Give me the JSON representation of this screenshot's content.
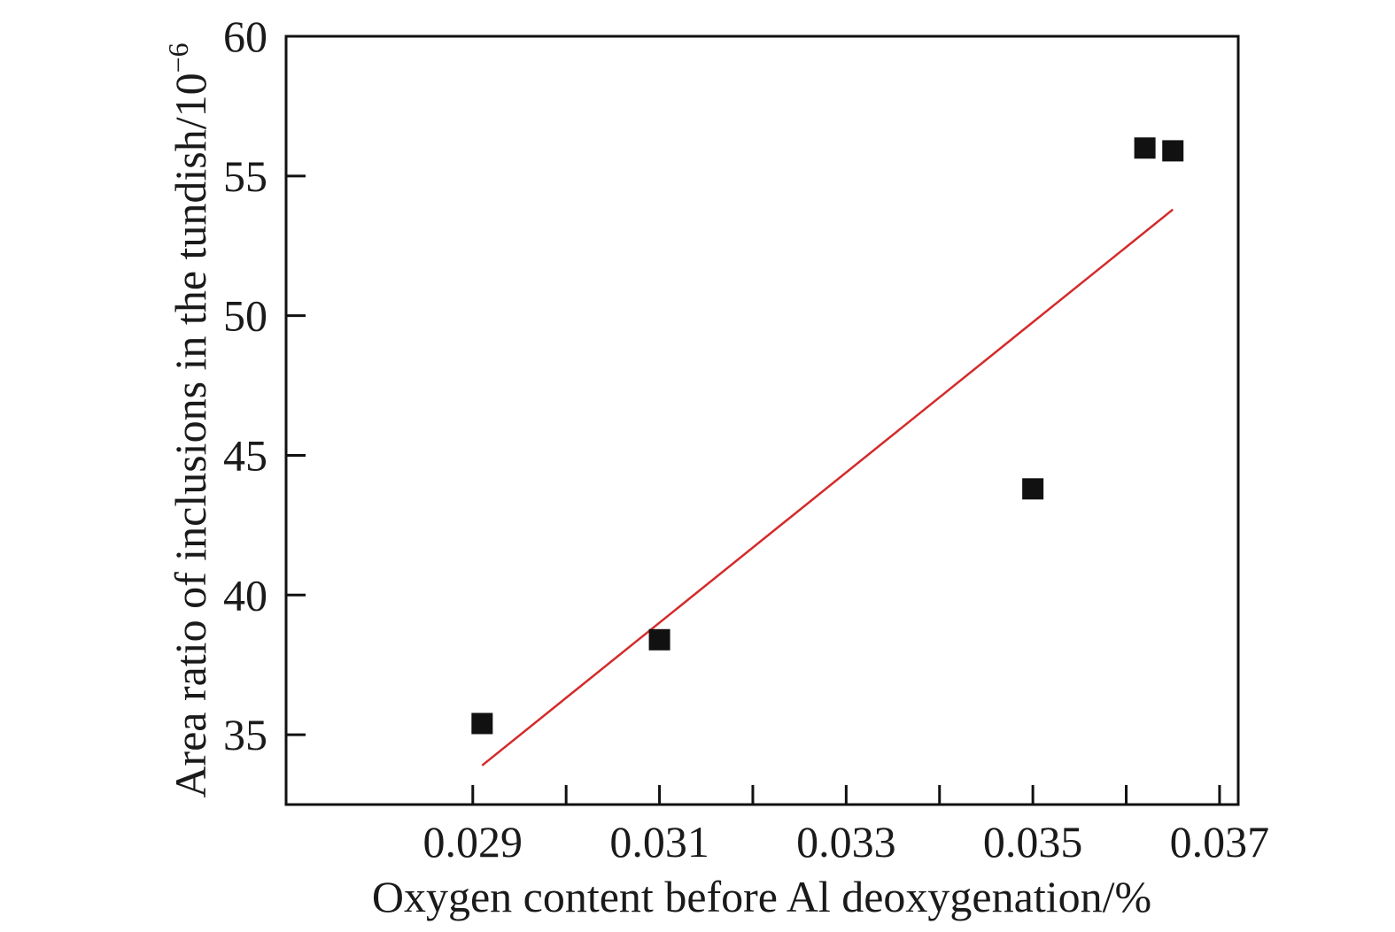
{
  "chart_data": {
    "type": "scatter",
    "title": "",
    "xlabel": "Oxygen content before Al deoxygenation/%",
    "ylabel": "Area ratio of inclusions in the tundish/10",
    "ylabel_superscript": "−6",
    "xlim": [
      0.027,
      0.0372
    ],
    "ylim": [
      32.5,
      60
    ],
    "x_ticks": [
      {
        "value": 0.029,
        "label": "0.029"
      },
      {
        "value": 0.031,
        "label": "0.031"
      },
      {
        "value": 0.033,
        "label": "0.033"
      },
      {
        "value": 0.035,
        "label": "0.035"
      },
      {
        "value": 0.037,
        "label": "0.037"
      }
    ],
    "x_minor_ticks": [
      0.03,
      0.032,
      0.034,
      0.036
    ],
    "y_ticks": [
      {
        "value": 35,
        "label": "35"
      },
      {
        "value": 40,
        "label": "40"
      },
      {
        "value": 45,
        "label": "45"
      },
      {
        "value": 50,
        "label": "50"
      },
      {
        "value": 55,
        "label": "55"
      },
      {
        "value": 60,
        "label": "60"
      }
    ],
    "grid": false,
    "legend": "none",
    "series": [
      {
        "marker": "square",
        "color": "#111111",
        "points": [
          {
            "x": 0.0291,
            "y": 35.4
          },
          {
            "x": 0.031,
            "y": 38.4
          },
          {
            "x": 0.035,
            "y": 43.8
          },
          {
            "x": 0.0362,
            "y": 56.0
          },
          {
            "x": 0.0365,
            "y": 55.9
          }
        ]
      }
    ],
    "fit_line": {
      "color": "#d42a2a",
      "points": [
        {
          "x": 0.0291,
          "y": 33.9
        },
        {
          "x": 0.0365,
          "y": 53.8
        }
      ]
    }
  }
}
